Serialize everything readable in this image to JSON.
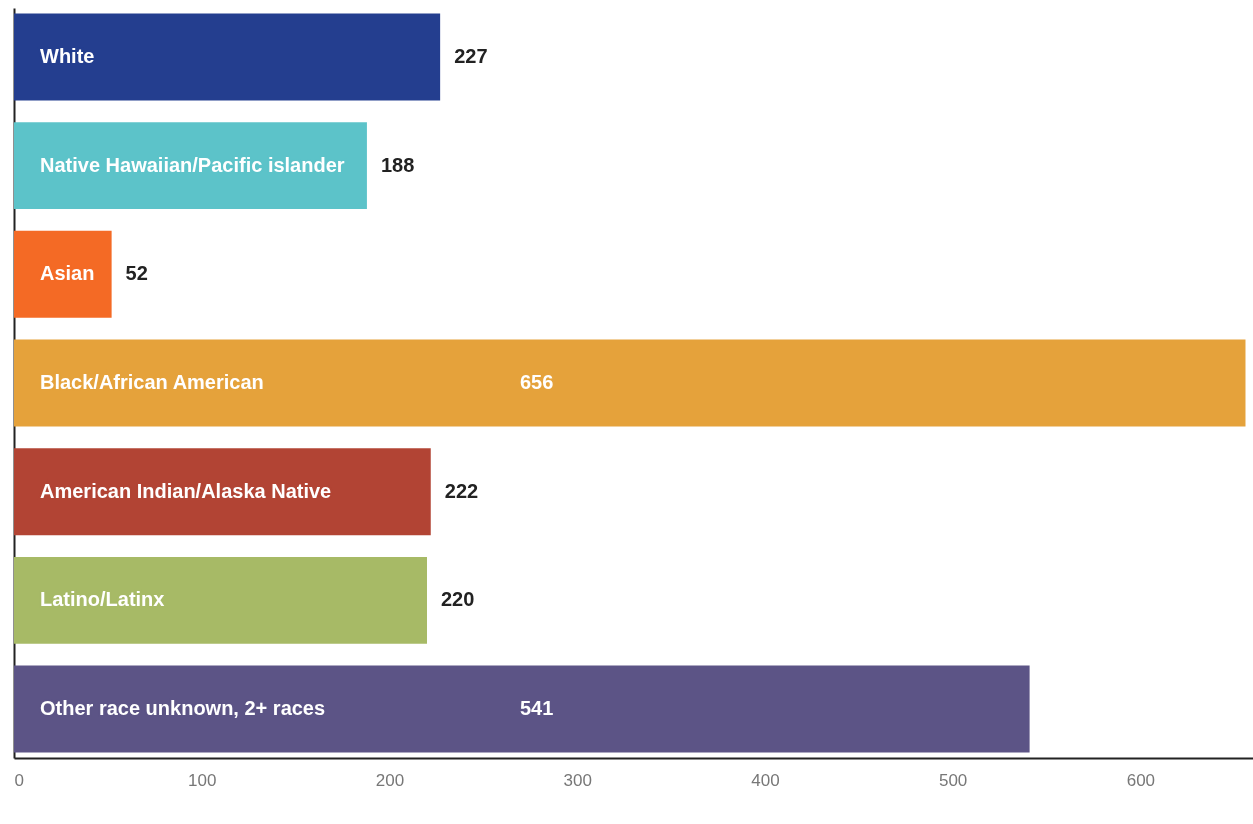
{
  "chart_data": {
    "type": "bar",
    "orientation": "horizontal",
    "categories": [
      "White",
      "Native Hawaiian/Pacific islander",
      "Asian",
      "Black/African American",
      "American Indian/Alaska Native",
      "Latino/Latinx",
      "Other race unknown, 2+ races"
    ],
    "values": [
      227,
      188,
      52,
      656,
      222,
      220,
      541
    ],
    "colors": [
      "#243e8f",
      "#5cc3c9",
      "#f46a25",
      "#e5a23b",
      "#b24434",
      "#a7ba66",
      "#5c5486"
    ],
    "xlim": [
      0,
      660
    ],
    "xticks": [
      0,
      100,
      200,
      300,
      400,
      500,
      600
    ],
    "data_labels": true,
    "tick_labels": "x",
    "grid": false
  }
}
